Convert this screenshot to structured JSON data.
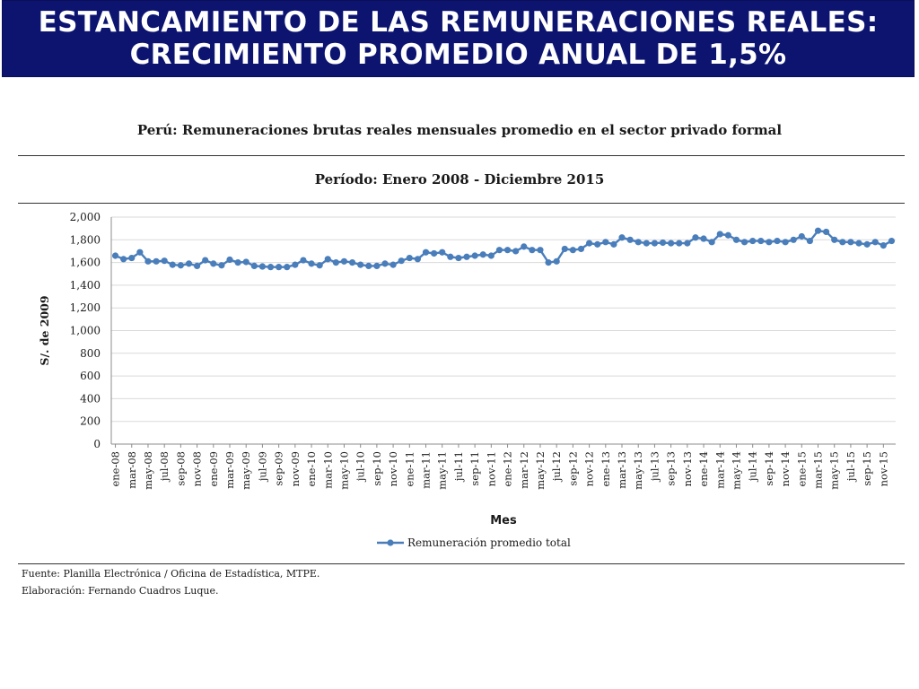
{
  "header": {
    "title_line1": "ESTANCAMIENTO DE LAS REMUNERACIONES REALES:",
    "title_line2": "CRECIMIENTO PROMEDIO ANUAL DE 1,5%"
  },
  "colors": {
    "banner": "#0c1470",
    "series": "#4a7ebb",
    "grid": "#d9d9d9"
  },
  "chart_data": {
    "type": "line",
    "title": "Perú: Remuneraciones brutas reales mensuales promedio en el sector privado formal",
    "subtitle": "Período: Enero 2008 - Diciembre 2015",
    "xlabel": "Mes",
    "ylabel": "S/. de 2009",
    "ylim": [
      0,
      2000
    ],
    "yticks": [
      "0",
      "200",
      "400",
      "600",
      "800",
      "1,000",
      "1,200",
      "1,400",
      "1,600",
      "1,800",
      "2,000"
    ],
    "grid": true,
    "legend_position": "bottom",
    "categories": [
      "ene-08",
      "feb-08",
      "mar-08",
      "abr-08",
      "may-08",
      "jun-08",
      "jul-08",
      "ago-08",
      "sep-08",
      "oct-08",
      "nov-08",
      "dic-08",
      "ene-09",
      "feb-09",
      "mar-09",
      "abr-09",
      "may-09",
      "jun-09",
      "jul-09",
      "ago-09",
      "sep-09",
      "oct-09",
      "nov-09",
      "dic-09",
      "ene-10",
      "feb-10",
      "mar-10",
      "abr-10",
      "may-10",
      "jun-10",
      "jul-10",
      "ago-10",
      "sep-10",
      "oct-10",
      "nov-10",
      "dic-10",
      "ene-11",
      "feb-11",
      "mar-11",
      "abr-11",
      "may-11",
      "jun-11",
      "jul-11",
      "ago-11",
      "sep-11",
      "oct-11",
      "nov-11",
      "dic-11",
      "ene-12",
      "feb-12",
      "mar-12",
      "abr-12",
      "may-12",
      "jun-12",
      "jul-12",
      "ago-12",
      "sep-12",
      "oct-12",
      "nov-12",
      "dic-12",
      "ene-13",
      "feb-13",
      "mar-13",
      "abr-13",
      "may-13",
      "jun-13",
      "jul-13",
      "ago-13",
      "sep-13",
      "oct-13",
      "nov-13",
      "dic-13",
      "ene-14",
      "feb-14",
      "mar-14",
      "abr-14",
      "may-14",
      "jun-14",
      "jul-14",
      "ago-14",
      "sep-14",
      "oct-14",
      "nov-14",
      "dic-14",
      "ene-15",
      "feb-15",
      "mar-15",
      "abr-15",
      "may-15",
      "jun-15",
      "jul-15",
      "ago-15",
      "sep-15",
      "oct-15",
      "nov-15",
      "dic-15"
    ],
    "shown_tick_labels": [
      "ene-08",
      "mar-08",
      "may-08",
      "jul-08",
      "sep-08",
      "nov-08",
      "ene-09",
      "mar-09",
      "may-09",
      "jul-09",
      "sep-09",
      "nov-09",
      "ene-10",
      "mar-10",
      "may-10",
      "jul-10",
      "sep-10",
      "nov-10",
      "ene-11",
      "mar-11",
      "may-11",
      "jul-11",
      "sep-11",
      "nov-11",
      "ene-12",
      "mar-12",
      "may-12",
      "jul-12",
      "sep-12",
      "nov-12",
      "ene-13",
      "mar-13",
      "may-13",
      "jul-13",
      "sep-13",
      "nov-13",
      "ene-14",
      "mar-14",
      "may-14",
      "jul-14",
      "sep-14",
      "nov-14",
      "ene-15",
      "mar-15",
      "may-15",
      "jul-15",
      "sep-15",
      "nov-15"
    ],
    "series": [
      {
        "name": "Remuneración promedio total",
        "values": [
          1660,
          1630,
          1640,
          1690,
          1610,
          1610,
          1615,
          1580,
          1575,
          1590,
          1570,
          1620,
          1590,
          1575,
          1625,
          1600,
          1605,
          1570,
          1565,
          1560,
          1560,
          1560,
          1580,
          1620,
          1590,
          1575,
          1630,
          1600,
          1610,
          1600,
          1580,
          1570,
          1570,
          1590,
          1580,
          1615,
          1640,
          1630,
          1690,
          1680,
          1690,
          1650,
          1640,
          1650,
          1660,
          1670,
          1660,
          1710,
          1710,
          1700,
          1740,
          1710,
          1710,
          1600,
          1610,
          1720,
          1710,
          1720,
          1770,
          1760,
          1780,
          1760,
          1820,
          1800,
          1780,
          1770,
          1770,
          1775,
          1770,
          1770,
          1770,
          1820,
          1810,
          1780,
          1850,
          1840,
          1800,
          1780,
          1790,
          1790,
          1780,
          1790,
          1780,
          1800,
          1830,
          1790,
          1880,
          1870,
          1800,
          1780,
          1780,
          1770,
          1760,
          1780,
          1750,
          1790
        ]
      }
    ]
  },
  "source": {
    "line1": "Fuente:  Planilla Electrónica / Oficina de Estadística, MTPE.",
    "line2": "Elaboración: Fernando Cuadros Luque."
  }
}
